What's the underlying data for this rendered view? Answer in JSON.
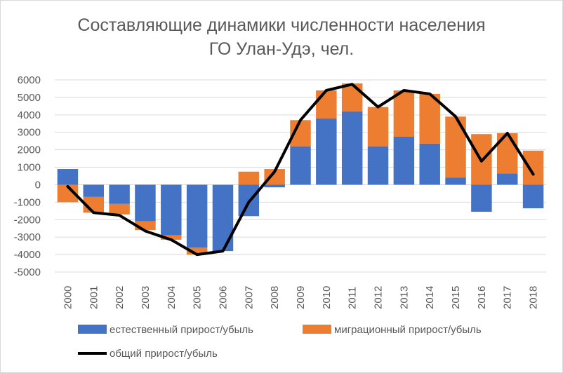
{
  "chart_data": {
    "type": "bar",
    "stacked": true,
    "title_line1": "Составляющие динамики численности населения",
    "title_line2": "ГО Улан-Удэ, чел.",
    "categories": [
      "2000",
      "2001",
      "2002",
      "2003",
      "2004",
      "2005",
      "2006",
      "2007",
      "2008",
      "2009",
      "2010",
      "2011",
      "2012",
      "2013",
      "2014",
      "2015",
      "2016",
      "2017",
      "2018"
    ],
    "ylim": [
      -5000,
      6000
    ],
    "yticks": [
      -5000,
      -4000,
      -3000,
      -2000,
      -1000,
      0,
      1000,
      2000,
      3000,
      4000,
      5000,
      6000
    ],
    "grid": true,
    "legend_position": "bottom",
    "series": [
      {
        "name": "естественный прирост/убыль",
        "type": "bar",
        "color": "#4472c4",
        "values": [
          900,
          -700,
          -1100,
          -2100,
          -2900,
          -3600,
          -3800,
          -1800,
          -150,
          2200,
          3800,
          4200,
          2200,
          2750,
          2350,
          400,
          -1550,
          650,
          -1350
        ]
      },
      {
        "name": "миграционный прирост/убыль",
        "type": "bar",
        "color": "#ed7d31",
        "values": [
          -1000,
          -900,
          -600,
          -500,
          -250,
          -400,
          0,
          750,
          900,
          1500,
          1600,
          1600,
          2250,
          2650,
          2850,
          3500,
          2900,
          2300,
          1950
        ]
      },
      {
        "name": "общий прирост/убыль",
        "type": "line",
        "color": "#000000",
        "values": [
          -100,
          -1600,
          -1750,
          -2650,
          -3150,
          -4000,
          -3800,
          -1000,
          750,
          3700,
          5400,
          5750,
          4450,
          5400,
          5200,
          3900,
          1350,
          2950,
          600
        ]
      }
    ]
  }
}
